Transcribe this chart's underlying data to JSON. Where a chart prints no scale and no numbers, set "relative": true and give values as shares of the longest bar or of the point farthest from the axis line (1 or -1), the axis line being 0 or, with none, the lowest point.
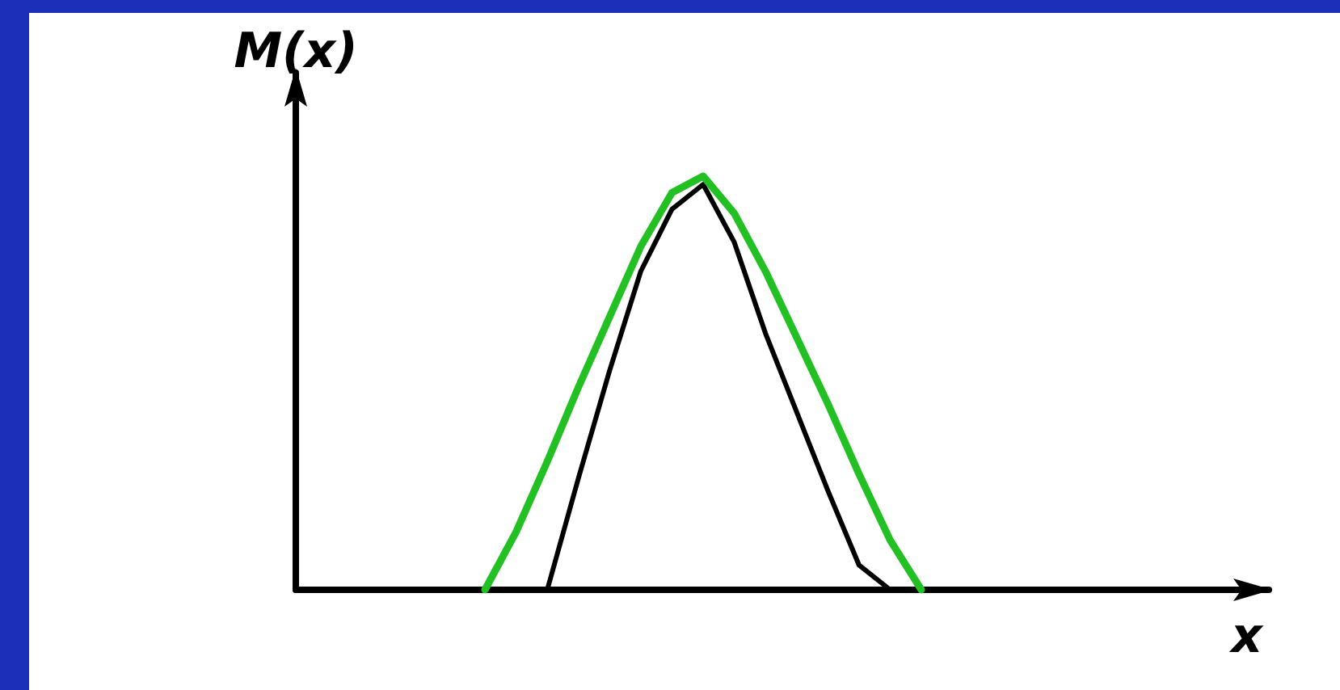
{
  "chart_data": {
    "type": "line",
    "relative": true,
    "annotations": [
      "x"
    ],
    "ylabel": "M(x)",
    "categories": [
      null,
      null,
      null,
      null,
      null,
      null,
      null,
      null,
      null,
      null,
      null,
      null,
      null,
      null,
      null
    ],
    "series": [
      {
        "color": "#22c022",
        "values": [
          0,
          0.14,
          0.31,
          0.49,
          0.66,
          0.83,
          0.96,
          1,
          0.91,
          0.77,
          0.61,
          0.45,
          0.28,
          0.12,
          0
        ]
      },
      {
        "color": "#000000",
        "values": [
          null,
          null,
          0,
          0.27,
          0.53,
          0.77,
          0.92,
          0.98,
          0.84,
          0.62,
          0.43,
          0.24,
          0.06,
          0,
          null
        ]
      }
    ],
    "grid": false,
    "marker": "none",
    "line_style": "solid"
  }
}
